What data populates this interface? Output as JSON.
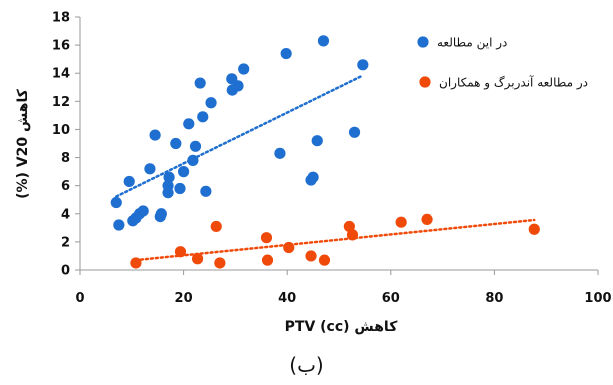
{
  "chart_data": {
    "type": "scatter",
    "xlabel": "کاهش PTV (cc)",
    "ylabel": "کاهش V20 (%)",
    "xlim": [
      0,
      100
    ],
    "ylim": [
      0,
      18
    ],
    "xticks": [
      0,
      20,
      40,
      60,
      80,
      100
    ],
    "yticks": [
      0,
      2,
      4,
      6,
      8,
      10,
      12,
      14,
      16,
      18
    ],
    "grid": false,
    "legend_position": "top-right",
    "series": [
      {
        "name": "در این مطالعه",
        "color": "#1f6fd0",
        "trendline": "linear-dotted",
        "points": [
          [
            7,
            4.8
          ],
          [
            7.5,
            3.2
          ],
          [
            9.5,
            6.3
          ],
          [
            10.2,
            3.5
          ],
          [
            10.8,
            3.7
          ],
          [
            11.5,
            4.0
          ],
          [
            12.2,
            4.2
          ],
          [
            13.5,
            7.2
          ],
          [
            14.5,
            9.6
          ],
          [
            15.5,
            3.8
          ],
          [
            15.7,
            4.0
          ],
          [
            17.0,
            5.5
          ],
          [
            17.0,
            6.0
          ],
          [
            17.2,
            6.6
          ],
          [
            18.5,
            9.0
          ],
          [
            19.3,
            5.8
          ],
          [
            20.0,
            7.0
          ],
          [
            21.0,
            10.4
          ],
          [
            21.8,
            7.8
          ],
          [
            22.3,
            8.8
          ],
          [
            23.2,
            13.3
          ],
          [
            23.7,
            10.9
          ],
          [
            24.3,
            5.6
          ],
          [
            25.3,
            11.9
          ],
          [
            29.3,
            13.6
          ],
          [
            29.4,
            12.8
          ],
          [
            30.5,
            13.1
          ],
          [
            31.6,
            14.3
          ],
          [
            38.6,
            8.3
          ],
          [
            39.8,
            15.4
          ],
          [
            44.6,
            6.4
          ],
          [
            45.0,
            6.6
          ],
          [
            45.8,
            9.2
          ],
          [
            47.0,
            16.3
          ],
          [
            53.0,
            9.8
          ],
          [
            54.6,
            14.6
          ]
        ]
      },
      {
        "name": "در مطالعه آندربرگ و همکاران",
        "color": "#f04a0a",
        "trendline": "linear-dotted",
        "points": [
          [
            10.8,
            0.5
          ],
          [
            19.4,
            1.3
          ],
          [
            22.7,
            0.8
          ],
          [
            26.3,
            3.1
          ],
          [
            27.0,
            0.5
          ],
          [
            36.0,
            2.3
          ],
          [
            36.2,
            0.7
          ],
          [
            40.3,
            1.6
          ],
          [
            44.6,
            1.0
          ],
          [
            47.2,
            0.7
          ],
          [
            52.0,
            3.1
          ],
          [
            52.6,
            2.5
          ],
          [
            62.0,
            3.4
          ],
          [
            67.0,
            3.6
          ],
          [
            87.7,
            2.9
          ]
        ]
      }
    ]
  },
  "caption": "(ب)"
}
